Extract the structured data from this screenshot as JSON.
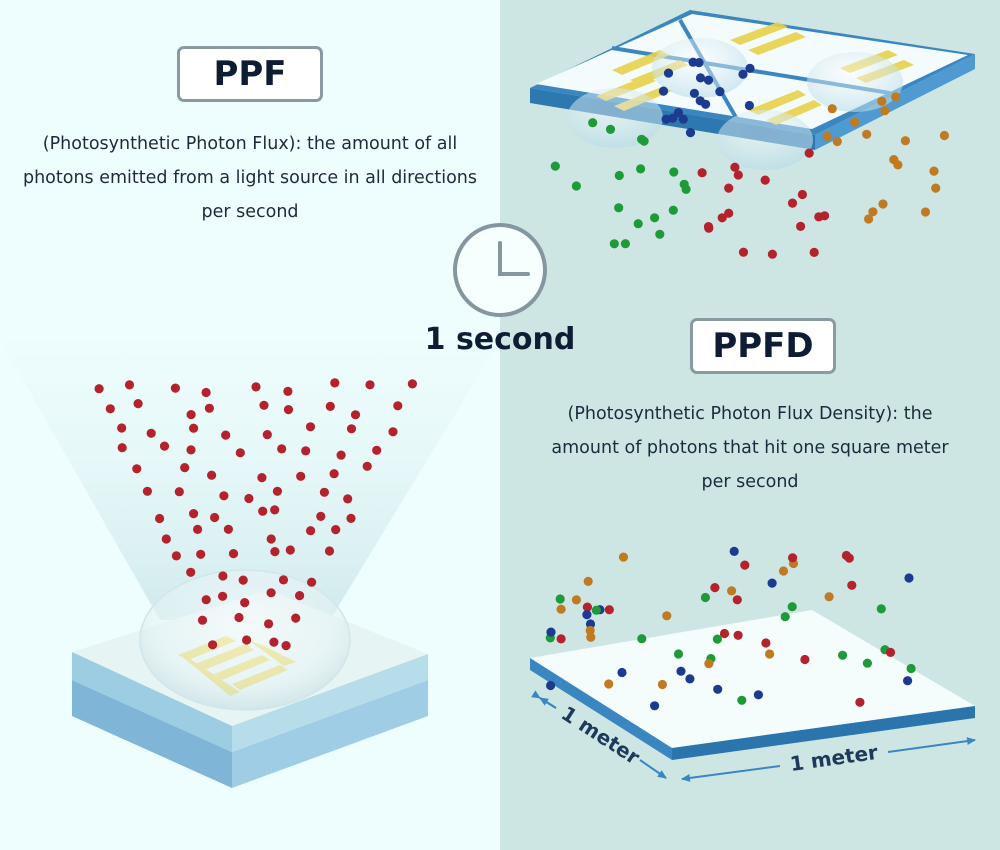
{
  "ppf": {
    "title": "PPF",
    "description": "(Photosynthetic Photon Flux): the amount of all photons emitted from a light source in all directions per second"
  },
  "time": {
    "label": "1 second",
    "icon": "clock-icon"
  },
  "ppfd": {
    "title": "PPFD",
    "description": "(Photosynthetic Photon Flux Density): the amount of photons that hit one square meter per second"
  },
  "dimensions": {
    "width_label": "1 meter",
    "depth_label": "1 meter"
  },
  "colors": {
    "left_background": "#eefdfd",
    "right_background": "#cde6e4",
    "photon_red": "#b3222d",
    "photon_green": "#1f9a3a",
    "photon_blue": "#1c3a8f",
    "photon_orange": "#c07a22",
    "plate_edge": "#3a86c0",
    "led_gold": "#e8d14a"
  }
}
